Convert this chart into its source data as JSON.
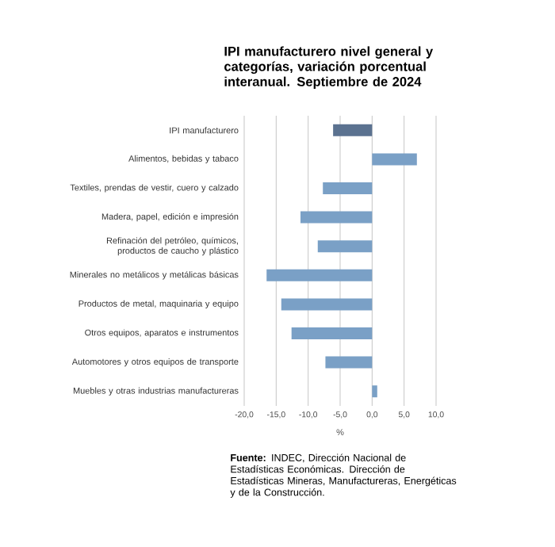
{
  "chart_data": {
    "type": "bar",
    "orientation": "horizontal",
    "title": "IPI manufacturero nivel general y categorías, variación porcentual interanual. Septiembre de 2024",
    "categories": [
      "IPI manufacturero",
      "Alimentos, bebidas y tabaco",
      "Textiles, prendas de vestir, cuero y calzado",
      "Madera, papel, edición e impresión",
      "Refinación del petróleo, químicos, productos de caucho y plástico",
      "Minerales no metálicos y metálicas básicas",
      "Productos de metal, maquinaria y equipo",
      "Otros equipos, aparatos e instrumentos",
      "Automotores y otros equipos de transporte",
      "Muebles y otras industrias manufactureras"
    ],
    "values": [
      -6.1,
      7.0,
      -7.7,
      -11.2,
      -8.5,
      -16.5,
      -14.2,
      -12.6,
      -7.3,
      0.8
    ],
    "colors": [
      "#5b7290",
      "#7aa0c6",
      "#7aa0c6",
      "#7aa0c6",
      "#7aa0c6",
      "#7aa0c6",
      "#7aa0c6",
      "#7aa0c6",
      "#7aa0c6",
      "#7aa0c6"
    ],
    "xlabel": "%",
    "xlim": [
      -20,
      10
    ],
    "xticks": [
      {
        "value": -20,
        "label": "-20,0"
      },
      {
        "value": -15,
        "label": "-15,0"
      },
      {
        "value": -10,
        "label": "-10,0"
      },
      {
        "value": -5,
        "label": "-5,0"
      },
      {
        "value": 0,
        "label": "0,0"
      },
      {
        "value": 5,
        "label": "5,0"
      },
      {
        "value": 10,
        "label": "10,0"
      }
    ],
    "grid": "x",
    "annotations": [
      "**Fuente:** INDEC, Dirección Nacional de Estadísticas Económicas. Dirección de Estadísticas Mineras, Manufactureras, Energéticas y de la Construcción."
    ]
  }
}
